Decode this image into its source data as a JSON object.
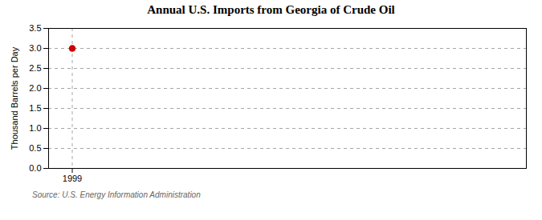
{
  "chart_data": {
    "type": "scatter",
    "title": "Annual U.S. Imports from Georgia of Crude Oil",
    "ylabel": "Thousand Barrels per Day",
    "source": "Source: U.S. Energy Information Administration",
    "x": [
      1999
    ],
    "values": [
      3.0
    ],
    "color": "#CC0000",
    "marker": "circle",
    "xlim": [
      1998.4,
      2010.5
    ],
    "xticks": [
      1999
    ],
    "ylim": [
      0.0,
      3.5
    ],
    "yticks": [
      {
        "value": 0.0,
        "label": "0.0"
      },
      0.5,
      {
        "value": 1.0,
        "label": "1.0"
      },
      1.5,
      {
        "value": 2.0,
        "label": "2.0"
      },
      2.5,
      {
        "value": 3.0,
        "label": "3.0"
      },
      3.5
    ],
    "grid": true
  }
}
